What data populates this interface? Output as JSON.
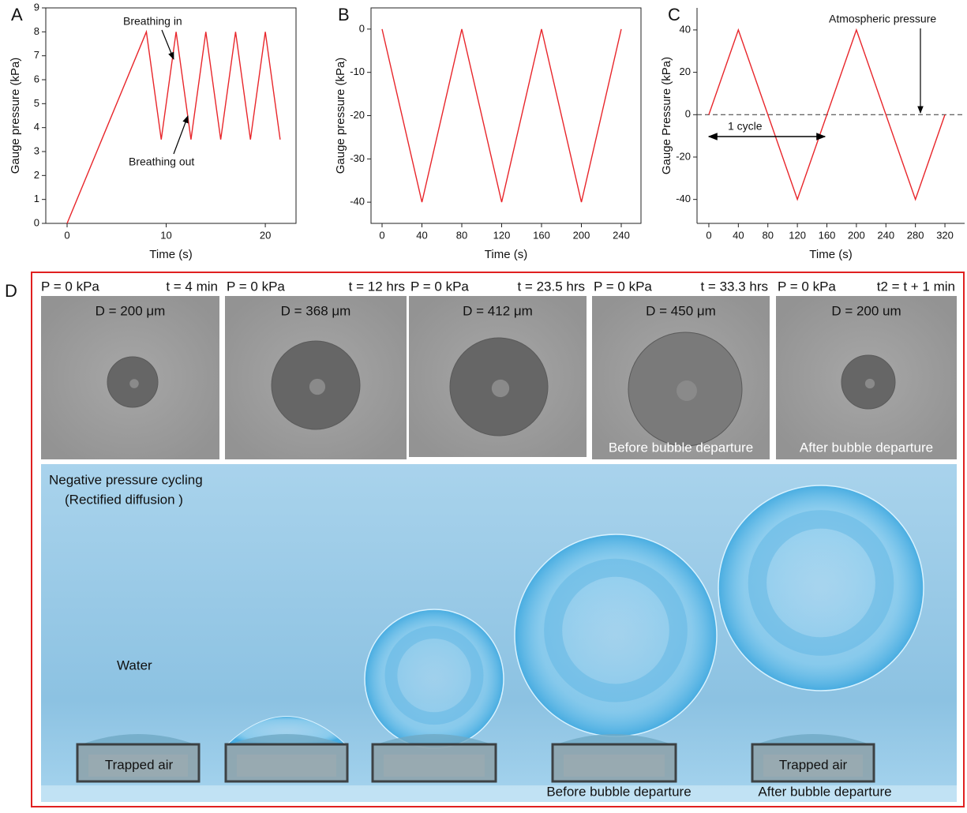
{
  "chart_data": [
    {
      "type": "line",
      "panel": "A",
      "xlabel": "Time (s)",
      "ylabel": "Gauge pressure (kPa)",
      "x": [
        0,
        8,
        9.5,
        11,
        12.5,
        14,
        15.5,
        17,
        18.5,
        20,
        21.5
      ],
      "values": [
        0,
        8,
        3.5,
        8,
        3.5,
        8,
        3.5,
        8,
        3.5,
        8,
        3.5
      ],
      "color": "#e8262b",
      "xlim": [
        -2.15,
        23.1
      ],
      "xticks": [
        0,
        10,
        20
      ],
      "ylim": [
        0,
        9
      ],
      "yticks": [
        0,
        1,
        2,
        3,
        4,
        5,
        6,
        7,
        8,
        9
      ],
      "annotations": [
        "Breathing in",
        "Breathing out"
      ],
      "box": true
    },
    {
      "type": "line",
      "panel": "B",
      "xlabel": "Time (s)",
      "ylabel": "Gauge pressure (kPa)",
      "x": [
        0,
        40,
        80,
        120,
        160,
        200,
        240
      ],
      "values": [
        0,
        -40,
        0,
        -40,
        0,
        -40,
        0
      ],
      "color": "#e8262b",
      "xlim": [
        -11.1,
        259.8
      ],
      "xticks": [
        0,
        40,
        80,
        120,
        160,
        200,
        240
      ],
      "ylim": [
        -44.9,
        4.9
      ],
      "yticks": [
        -40,
        -30,
        -20,
        -10,
        0
      ],
      "box": true
    },
    {
      "type": "line",
      "panel": "C",
      "xlabel": "Time (s)",
      "ylabel": "Gauge Pressure (kPa)",
      "x": [
        0,
        40,
        120,
        200,
        280,
        320
      ],
      "values": [
        0,
        40,
        -40,
        40,
        -40,
        0
      ],
      "color": "#e8262b",
      "xlim": [
        -16,
        346.7
      ],
      "xticks": [
        0,
        40,
        80,
        120,
        160,
        200,
        240,
        280,
        320
      ],
      "ylim": [
        -51.3,
        50.4
      ],
      "yticks": [
        -40,
        -20,
        0,
        20,
        40
      ],
      "reference_line": 0,
      "annotations": [
        "Atmospheric pressure",
        "1 cycle"
      ],
      "box": false
    }
  ],
  "panel_d": {
    "label": "D",
    "micrographs": [
      {
        "pressure": "P = 0 kPa",
        "time": "t = 4 min",
        "diameter": "D = 200 μm"
      },
      {
        "pressure": "P = 0 kPa",
        "time": "t = 12 hrs",
        "diameter": "D = 368 μm"
      },
      {
        "pressure": "P = 0 kPa",
        "time": "t = 23.5 hrs",
        "diameter": "D = 412 μm"
      },
      {
        "pressure": "P = 0 kPa",
        "time": "t = 33.3 hrs",
        "diameter": "D = 450 μm",
        "caption": "Before bubble departure"
      },
      {
        "pressure": "P = 0 kPa",
        "time": "t2 = t + 1 min",
        "diameter": "D = 200 um",
        "caption": "After bubble departure"
      }
    ],
    "illustration": {
      "title": "Negative pressure cycling",
      "subtitle": "(Rectified diffusion )",
      "medium": "Water",
      "labels": [
        "Trapped air",
        "Trapped air",
        "Before bubble departure",
        "After bubble departure"
      ]
    }
  }
}
